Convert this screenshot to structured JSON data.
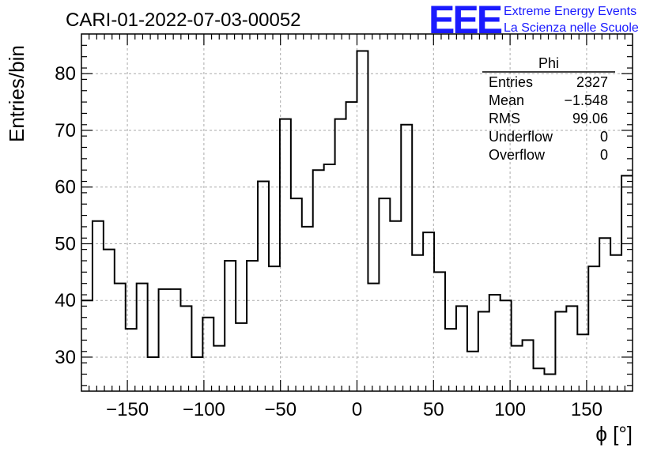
{
  "chart_data": {
    "type": "histogram",
    "title": "CARI-01-2022-07-03-00052",
    "xlabel": "ϕ [°]",
    "ylabel": "Entries/bin",
    "xlim": [
      -180,
      180
    ],
    "ylim": [
      24,
      87
    ],
    "grid": true,
    "bin_width": 7.2,
    "x_ticks": [
      -150,
      -100,
      -50,
      0,
      50,
      100,
      150
    ],
    "x_tick_labels": [
      "−150",
      "−100",
      "−50",
      "0",
      "50",
      "100",
      "150"
    ],
    "y_ticks": [
      30,
      40,
      50,
      60,
      70,
      80
    ],
    "y_tick_labels": [
      "30",
      "40",
      "50",
      "60",
      "70",
      "80"
    ],
    "values": [
      40,
      54,
      49,
      43,
      35,
      43,
      30,
      42,
      42,
      39,
      30,
      37,
      32,
      47,
      36,
      47,
      61,
      46,
      72,
      58,
      53,
      63,
      64,
      72,
      75,
      84,
      43,
      58,
      54,
      71,
      48,
      52,
      45,
      35,
      39,
      31,
      38,
      41,
      40,
      32,
      33,
      28,
      27,
      38,
      39,
      34,
      46,
      51,
      48,
      62
    ],
    "stats_box": {
      "title": "Phi",
      "rows": [
        {
          "label": "Entries",
          "value": "2327"
        },
        {
          "label": "Mean",
          "value": "−1.548"
        },
        {
          "label": "RMS",
          "value": "99.06"
        },
        {
          "label": "Underflow",
          "value": "0"
        },
        {
          "label": "Overflow",
          "value": "0"
        }
      ]
    }
  },
  "logo": {
    "mark": "EEE",
    "line1": "Extreme Energy Events",
    "line2": "La Scienza nelle Scuole"
  },
  "colors": {
    "histogram_line": "#000000",
    "grid": "#aaaaaa",
    "logo": "#1a1aff"
  }
}
